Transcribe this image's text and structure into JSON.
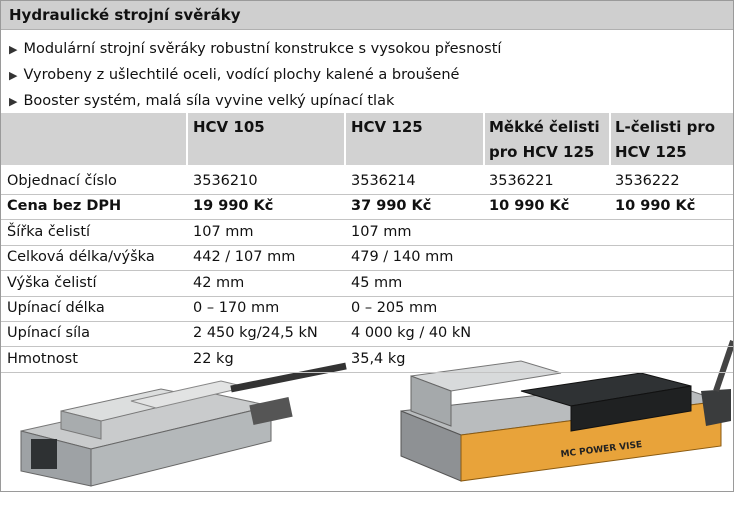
{
  "title": "Hydraulické strojní svěráky",
  "bullets": [
    "Modulární strojní svěráky robustní konstrukce s vysokou přesností",
    "Vyrobeny z ušlechtilé oceli, vodící plochy kalené a broušené",
    "Booster systém, malá síla vyvine velký upínací tlak"
  ],
  "table": {
    "columns": [
      "HCV 105",
      "HCV 125",
      "Měkké čelisti pro HCV 125",
      "L-čelisti pro HCV 125"
    ],
    "rows": [
      {
        "label": "Objednací číslo",
        "cells": [
          "3536210",
          "3536214",
          "3536221",
          "3536222"
        ]
      },
      {
        "label": "Cena bez DPH",
        "cells": [
          "19 990 Kč",
          "37 990 Kč",
          "10 990 Kč",
          "10 990 Kč"
        ],
        "emphasis": true
      },
      {
        "label": "Šířka čelistí",
        "cells": [
          "107 mm",
          "107 mm"
        ]
      },
      {
        "label": "Celková délka/výška",
        "cells": [
          "442 / 107 mm",
          "479 / 140 mm"
        ]
      },
      {
        "label": "Výška čelistí",
        "cells": [
          "42 mm",
          "45 mm"
        ]
      },
      {
        "label": "Upínací délka",
        "cells": [
          "0 – 170 mm",
          "0 – 205 mm"
        ]
      },
      {
        "label": "Upínací síla",
        "cells": [
          "2 450 kg/24,5 kN",
          "4 000 kg / 40 kN"
        ]
      },
      {
        "label": "Hmotnost",
        "cells": [
          "22 kg",
          "35,4 kg"
        ]
      }
    ]
  }
}
